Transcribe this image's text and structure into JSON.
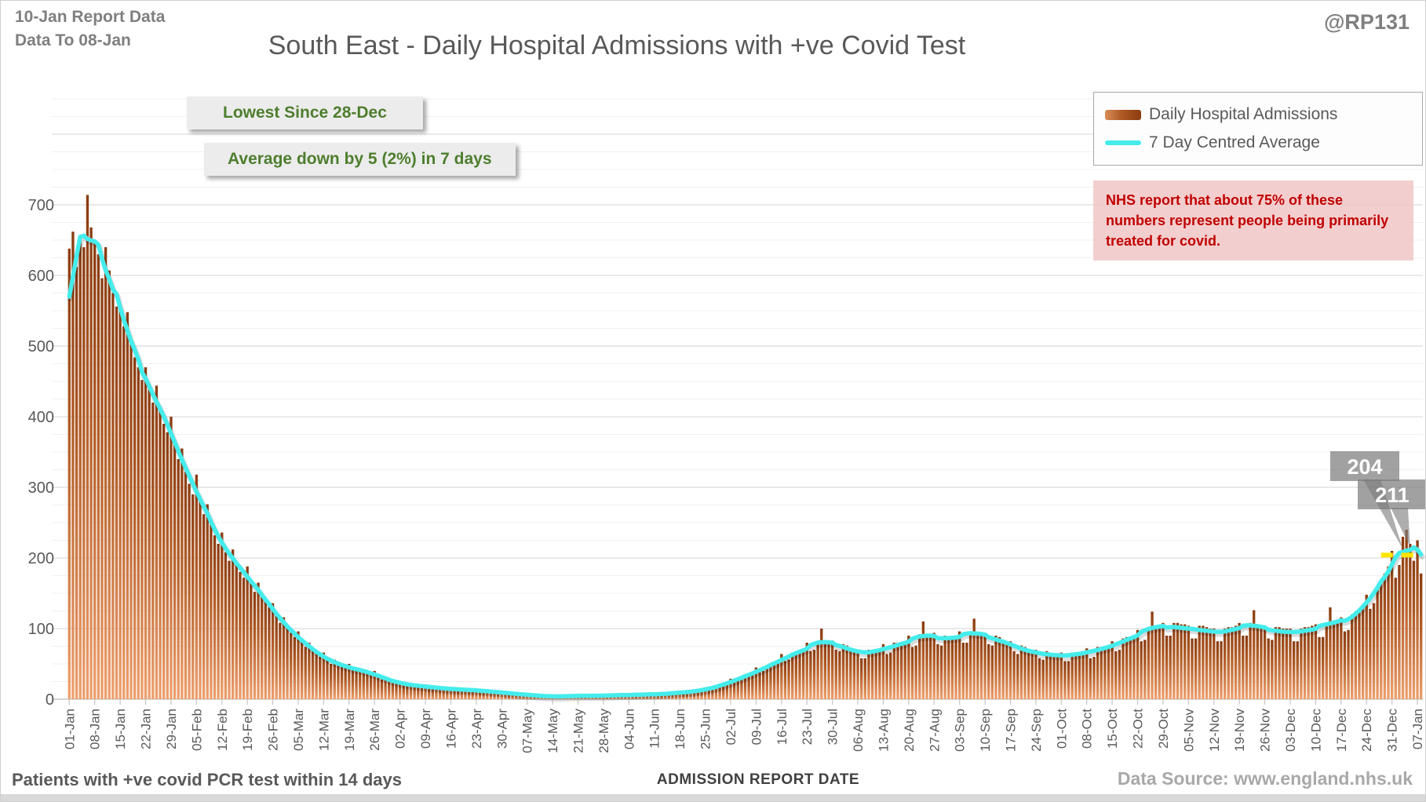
{
  "header": {
    "report_line1": "10-Jan Report Data",
    "report_line2": "Data To 08-Jan",
    "handle": "@RP131",
    "title": "South East - Daily Hospital Admissions with +ve Covid Test"
  },
  "callouts": {
    "lowest_since": "Lowest Since 28-Dec",
    "average_change": "Average down by 5 (2%) in 7 days"
  },
  "note": {
    "text": "NHS report that about 75% of these numbers represent people being primarily treated for covid."
  },
  "legend": {
    "bars_label": "Daily Hospital Admissions",
    "line_label": "7 Day Centred Average"
  },
  "footer": {
    "left": "Patients with +ve covid PCR test within 14 days",
    "x_axis_title": "ADMISSION REPORT DATE",
    "right": "Data Source: www.england.nhs.uk"
  },
  "colors": {
    "bar_top": "#8a3b10",
    "bar_mid": "#b05a24",
    "bar_bottom": "#efa06d",
    "average_line": "#45ecec",
    "yellow_marker": "#ffe600",
    "callout_box": "rgba(125,125,125,0.72)",
    "green_text": "#4e7e2e",
    "red_text": "#c00000",
    "axis_text": "#595959"
  },
  "chart_data": {
    "type": "bar",
    "title": "South East - Daily Hospital Admissions with +ve Covid Test",
    "xlabel": "ADMISSION REPORT DATE",
    "ylabel": "",
    "ylim": [
      0,
      860
    ],
    "yticks": [
      0,
      100,
      200,
      300,
      400,
      500,
      600,
      700
    ],
    "minor_grid_step": 25,
    "major_grid_step": 100,
    "grid": true,
    "legend_position": "top-right",
    "tick_every_days": 7,
    "x_tick_labels": [
      "01-Jan",
      "08-Jan",
      "15-Jan",
      "22-Jan",
      "29-Jan",
      "05-Feb",
      "12-Feb",
      "19-Feb",
      "26-Feb",
      "05-Mar",
      "12-Mar",
      "19-Mar",
      "26-Mar",
      "02-Apr",
      "09-Apr",
      "16-Apr",
      "23-Apr",
      "30-Apr",
      "07-May",
      "14-May",
      "21-May",
      "28-May",
      "04-Jun",
      "11-Jun",
      "18-Jun",
      "25-Jun",
      "02-Jul",
      "09-Jul",
      "16-Jul",
      "23-Jul",
      "30-Jul",
      "06-Aug",
      "13-Aug",
      "20-Aug",
      "27-Aug",
      "03-Sep",
      "10-Sep",
      "17-Sep",
      "24-Sep",
      "01-Oct",
      "08-Oct",
      "15-Oct",
      "22-Oct",
      "29-Oct",
      "05-Nov",
      "12-Nov",
      "19-Nov",
      "26-Nov",
      "03-Dec",
      "10-Dec",
      "17-Dec",
      "24-Dec",
      "31-Dec",
      "07-Jan"
    ],
    "series": [
      {
        "name": "Daily Hospital Admissions",
        "type": "bar"
      },
      {
        "name": "7 Day Centred Average",
        "type": "line",
        "derived": "7-day centred mean of bars"
      }
    ],
    "values": [
      638,
      662,
      612,
      648,
      640,
      714,
      668,
      650,
      630,
      596,
      640,
      607,
      575,
      556,
      560,
      528,
      548,
      508,
      484,
      470,
      452,
      470,
      438,
      420,
      444,
      408,
      390,
      378,
      400,
      362,
      340,
      355,
      322,
      305,
      290,
      318,
      284,
      262,
      276,
      248,
      232,
      220,
      236,
      208,
      196,
      212,
      192,
      180,
      172,
      188,
      164,
      152,
      165,
      148,
      138,
      130,
      136,
      118,
      108,
      116,
      102,
      94,
      88,
      96,
      82,
      74,
      80,
      70,
      64,
      60,
      66,
      56,
      50,
      56,
      50,
      46,
      44,
      50,
      42,
      40,
      44,
      40,
      38,
      35,
      40,
      32,
      28,
      32,
      28,
      25,
      22,
      26,
      20,
      19,
      23,
      20,
      18,
      17,
      21,
      16,
      15,
      18,
      16,
      15,
      14,
      17,
      13,
      12,
      15,
      14,
      13,
      12,
      15,
      11,
      10,
      13,
      11,
      10,
      9,
      12,
      8,
      7,
      9,
      8,
      7,
      6,
      8,
      5,
      4,
      6,
      5,
      4,
      4,
      5,
      3,
      3,
      5,
      4,
      4,
      5,
      6,
      4,
      4,
      6,
      5,
      4,
      5,
      6,
      4,
      5,
      7,
      6,
      5,
      6,
      7,
      5,
      5,
      8,
      7,
      6,
      7,
      8,
      6,
      6,
      9,
      8,
      8,
      9,
      11,
      8,
      9,
      12,
      11,
      11,
      12,
      16,
      13,
      15,
      19,
      18,
      19,
      22,
      29,
      24,
      26,
      32,
      32,
      33,
      36,
      45,
      38,
      40,
      48,
      48,
      49,
      52,
      64,
      54,
      56,
      66,
      66,
      66,
      69,
      80,
      68,
      70,
      82,
      100,
      80,
      81,
      83,
      70,
      68,
      78,
      76,
      72,
      70,
      70,
      58,
      58,
      70,
      70,
      68,
      70,
      78,
      64,
      66,
      80,
      80,
      78,
      80,
      90,
      74,
      76,
      92,
      110,
      90,
      90,
      94,
      78,
      76,
      90,
      88,
      88,
      90,
      96,
      80,
      80,
      96,
      114,
      94,
      94,
      94,
      78,
      76,
      90,
      88,
      84,
      82,
      82,
      68,
      64,
      76,
      74,
      70,
      68,
      70,
      58,
      56,
      68,
      66,
      64,
      64,
      66,
      54,
      54,
      66,
      66,
      66,
      68,
      72,
      58,
      60,
      74,
      74,
      74,
      76,
      82,
      68,
      70,
      86,
      88,
      88,
      90,
      98,
      82,
      84,
      102,
      124,
      102,
      104,
      108,
      90,
      90,
      108,
      108,
      106,
      106,
      104,
      86,
      86,
      104,
      104,
      102,
      100,
      100,
      82,
      82,
      100,
      102,
      102,
      104,
      108,
      90,
      90,
      108,
      126,
      106,
      104,
      104,
      86,
      84,
      102,
      102,
      100,
      100,
      100,
      82,
      82,
      100,
      102,
      102,
      104,
      106,
      88,
      88,
      108,
      130,
      110,
      112,
      116,
      96,
      98,
      120,
      124,
      128,
      134,
      148,
      128,
      136,
      160,
      168,
      178,
      188,
      210,
      172,
      190,
      230,
      240,
      220,
      196,
      225,
      178
    ],
    "avg_head_override": [
      570,
      598,
      628
    ],
    "data_labels": [
      {
        "text": "204",
        "day": 367
      },
      {
        "text": "211",
        "day": 369
      }
    ],
    "yellow_marker": {
      "value": 204,
      "from_day": 361,
      "to_day": 372
    }
  }
}
